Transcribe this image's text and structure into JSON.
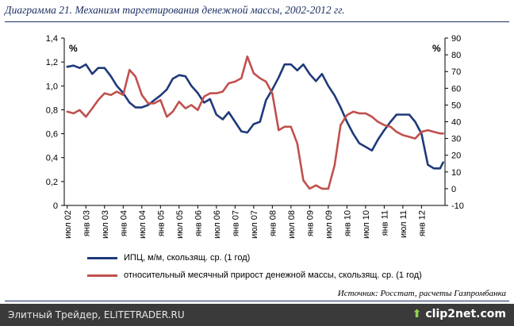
{
  "title": "Диаграмма 21. Механизм таргетирования денежной массы, 2002-2012 гг.",
  "source": "Источник: Росстат, расчеты Газпромбанка",
  "watermark_left": "Элитный Трейдер, ELITETRADER.RU",
  "watermark_right": "clip2net.com",
  "colors": {
    "series1": "#1f3a7a",
    "series2": "#c0504d",
    "title": "#1c2f64"
  },
  "chart_data": {
    "type": "line",
    "left_axis": {
      "unit_label": "%",
      "ylim": [
        0,
        1.4
      ],
      "ticks": [
        "0",
        "0,2",
        "0,4",
        "0,6",
        "0,8",
        "1,0",
        "1,2",
        "1,4"
      ]
    },
    "right_axis": {
      "unit_label": "%",
      "ylim": [
        -10,
        90
      ],
      "ticks": [
        "-10",
        "0",
        "10",
        "20",
        "30",
        "40",
        "50",
        "60",
        "70",
        "80",
        "90"
      ]
    },
    "x_ticks": [
      "июл 02",
      "янв 03",
      "июл 03",
      "янв 04",
      "июл 04",
      "янв 05",
      "июл 05",
      "янв 06",
      "июл 06",
      "янв 07",
      "июл 07",
      "янв 08",
      "июл 08",
      "янв 09",
      "июл 09",
      "янв 10",
      "июл 10",
      "янв 11",
      "июл 11",
      "янв 12"
    ],
    "legend_position": "bottom",
    "grid": false,
    "series": [
      {
        "name": "ИПЦ, м/м, скользящ. ср. (1 год)",
        "axis": "left",
        "x": [
          2002.5,
          2002.67,
          2002.83,
          2003.0,
          2003.17,
          2003.33,
          2003.5,
          2003.67,
          2003.83,
          2004.0,
          2004.17,
          2004.33,
          2004.5,
          2004.67,
          2004.83,
          2005.0,
          2005.17,
          2005.33,
          2005.5,
          2005.67,
          2005.83,
          2006.0,
          2006.17,
          2006.33,
          2006.5,
          2006.67,
          2006.83,
          2007.0,
          2007.17,
          2007.33,
          2007.5,
          2007.67,
          2007.83,
          2008.0,
          2008.17,
          2008.33,
          2008.5,
          2008.67,
          2008.83,
          2009.0,
          2009.17,
          2009.33,
          2009.5,
          2009.67,
          2009.83,
          2010.0,
          2010.17,
          2010.33,
          2010.5,
          2010.67,
          2010.83,
          2011.0,
          2011.17,
          2011.33,
          2011.5,
          2011.67,
          2011.83,
          2012.0,
          2012.17,
          2012.33,
          2012.5,
          2012.58
        ],
        "values": [
          1.16,
          1.17,
          1.15,
          1.18,
          1.1,
          1.15,
          1.15,
          1.08,
          1.0,
          0.94,
          0.86,
          0.82,
          0.82,
          0.84,
          0.88,
          0.92,
          0.97,
          1.06,
          1.09,
          1.08,
          1.0,
          0.94,
          0.86,
          0.89,
          0.76,
          0.72,
          0.78,
          0.7,
          0.62,
          0.61,
          0.68,
          0.7,
          0.88,
          0.97,
          1.07,
          1.18,
          1.18,
          1.13,
          1.18,
          1.1,
          1.04,
          1.1,
          1.0,
          0.92,
          0.82,
          0.7,
          0.6,
          0.52,
          0.49,
          0.46,
          0.55,
          0.63,
          0.7,
          0.76,
          0.76,
          0.76,
          0.7,
          0.6,
          0.34,
          0.31,
          0.31,
          0.36
        ]
      },
      {
        "name": "относительный месячный прирост денежной массы, скользящ. ср. (1 год)",
        "axis": "right",
        "x": [
          2002.5,
          2002.67,
          2002.83,
          2003.0,
          2003.17,
          2003.33,
          2003.5,
          2003.67,
          2003.83,
          2004.0,
          2004.17,
          2004.33,
          2004.5,
          2004.67,
          2004.83,
          2005.0,
          2005.17,
          2005.33,
          2005.5,
          2005.67,
          2005.83,
          2006.0,
          2006.17,
          2006.33,
          2006.5,
          2006.67,
          2006.83,
          2007.0,
          2007.17,
          2007.33,
          2007.5,
          2007.67,
          2007.83,
          2008.0,
          2008.17,
          2008.33,
          2008.5,
          2008.67,
          2008.83,
          2009.0,
          2009.17,
          2009.33,
          2009.5,
          2009.67,
          2009.83,
          2010.0,
          2010.17,
          2010.33,
          2010.5,
          2010.67,
          2010.83,
          2011.0,
          2011.17,
          2011.33,
          2011.5,
          2011.67,
          2011.83,
          2012.0,
          2012.17,
          2012.33,
          2012.5,
          2012.58
        ],
        "values": [
          46,
          45,
          47,
          43,
          48,
          53,
          57,
          56,
          58,
          56,
          71,
          67,
          56,
          51,
          51,
          53,
          43,
          46,
          52,
          48,
          50,
          47,
          55,
          57,
          57,
          58,
          63,
          64,
          66,
          79,
          69,
          66,
          64,
          57,
          35,
          37,
          37,
          27,
          5,
          0,
          2,
          0,
          0,
          14,
          38,
          44,
          46,
          45,
          45,
          43,
          40,
          38,
          37,
          34,
          32,
          31,
          30,
          34,
          35,
          34,
          33,
          33
        ]
      }
    ]
  }
}
